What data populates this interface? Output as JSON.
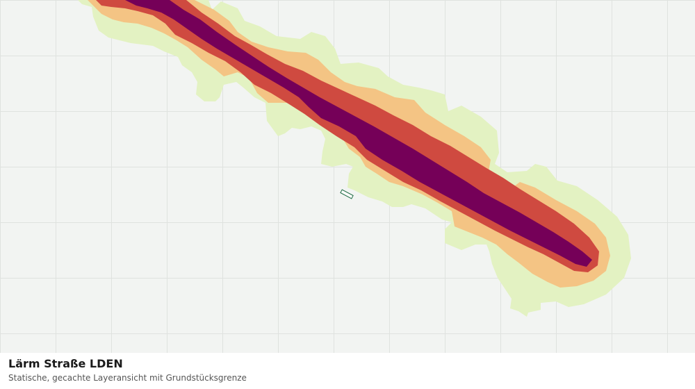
{
  "map": {
    "layer_title": "Lärm Straße LDEN",
    "layer_subtitle": "Statische, gecachte Layeransicht mit Grundstücksgrenze",
    "colors": {
      "background": "#f2f4f2",
      "grid": "#dfe2df",
      "band_outer": "#e3f2c2",
      "band_mid": "#f4c484",
      "band_inner": "#cf4a40",
      "band_core": "#750058",
      "parcel": "#1f6b45"
    }
  }
}
